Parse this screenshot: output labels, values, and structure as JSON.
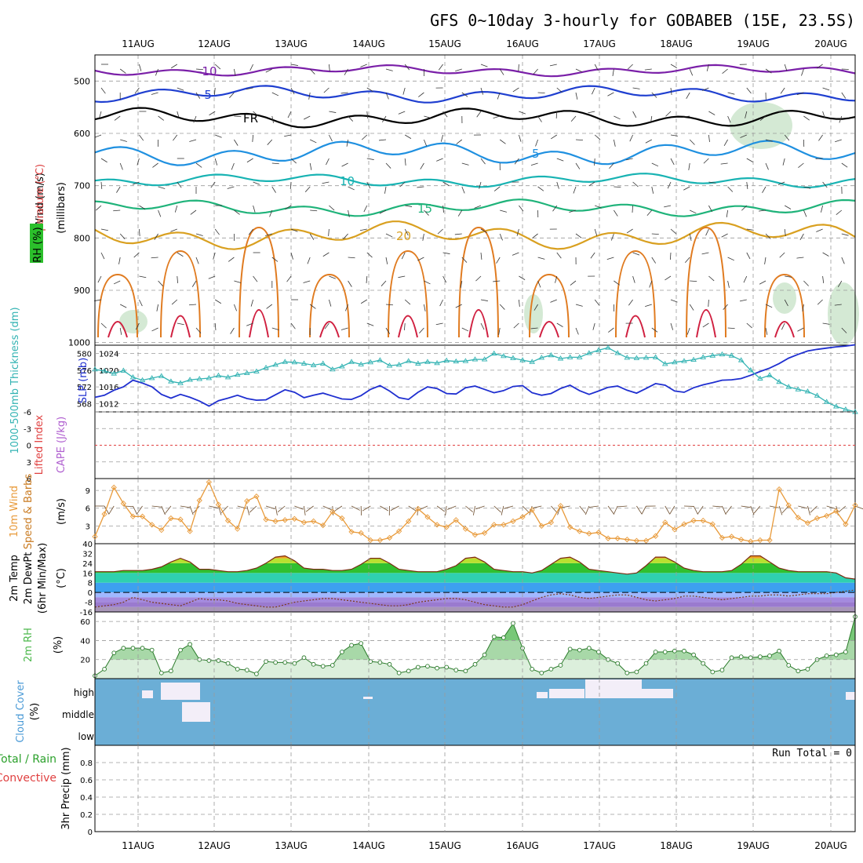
{
  "title": "GFS 0~10day 3-hourly for GOBABEB (15E, 23.5S)",
  "dates": [
    "11AUG",
    "12AUG",
    "13AUG",
    "14AUG",
    "15AUG",
    "16AUG",
    "17AUG",
    "18AUG",
    "19AUG",
    "20AUG"
  ],
  "colors": {
    "thickness": "#33b3b3",
    "slp": "#1f2fd0",
    "wind10": "#e89a3a",
    "rh2m_fill": "#4cb84c",
    "cloud": "#6baed6",
    "cloud_clear": "#f3eef8",
    "grid": "#9a9a9a"
  },
  "panels": {
    "upper": {
      "ylabels": [
        "Wind (m/s)",
        "Temperature (°C)",
        "RH (%)",
        "(millibars)"
      ],
      "yticks": [
        "500",
        "600",
        "700",
        "800",
        "900",
        "1000"
      ]
    },
    "thickness": {
      "ylabel_left": "1000-500mb Thickness (dm)",
      "ylabel_right": "SLP (mb)",
      "ticks_left": [
        "580",
        "576",
        "572",
        "568"
      ],
      "ticks_right": [
        "1024",
        "1020",
        "1016",
        "1012"
      ]
    },
    "lifted": {
      "ylabel_left": "Lifted Index",
      "ylabel_right": "CAPE (J/kg)",
      "ticks": [
        "-6",
        "-3",
        "0",
        "3",
        "6"
      ]
    },
    "wind10m": {
      "ylabel_left": "10m Wind",
      "ylabel_mid": "Speed & Barbs",
      "ylabel_right": "(m/s)",
      "ticks": [
        "9",
        "6",
        "3"
      ]
    },
    "temp2m": {
      "ylabel_a": "2m Temp",
      "ylabel_b": "2m DewPt",
      "ylabel_c": "(6hr Min/Max)",
      "ylabel_d": "(°C)",
      "ticks": [
        "40",
        "32",
        "24",
        "16",
        "8",
        "0",
        "-8",
        "-16"
      ]
    },
    "rh2m": {
      "ylabel_left": "2m RH",
      "ylabel_right": "(%)",
      "ticks": [
        "60",
        "40",
        "20"
      ]
    },
    "cloud": {
      "ylabel_left": "Cloud Cover",
      "ylabel_right": "(%)",
      "levels": [
        "high",
        "middle",
        "low"
      ]
    },
    "precip": {
      "ylabel_a": "Total / Rain",
      "ylabel_b": "Convective",
      "ylabel_c": "3hr Precip (mm)",
      "ticks": [
        "0.8",
        "0.6",
        "0.4",
        "0.2",
        "0"
      ],
      "run_total": "Run Total = 0"
    }
  },
  "chart_data": [
    {
      "type": "line",
      "title": "1000-500mb Thickness and SLP",
      "series": [
        {
          "name": "Thickness (dm)",
          "values": [
            576.2,
            575.8,
            575.2,
            575.9,
            574.3,
            573.6,
            574.1,
            574.6,
            573.3,
            572.9,
            573.7,
            573.9,
            574.1,
            574.7,
            574.3,
            574.9,
            575.3,
            575.7,
            576.6,
            577.3,
            578.0,
            577.9,
            577.6,
            577.2,
            577.6,
            576.2,
            576.9,
            578.0,
            577.4,
            577.9,
            578.4,
            577.1,
            577.3,
            578.2,
            577.6,
            578.0,
            577.7,
            578.3,
            578.1,
            578.2,
            578.6,
            578.6,
            580.0,
            579.4,
            578.9,
            578.4,
            578.0,
            579.0,
            579.6,
            578.8,
            579.1,
            579.1,
            580.1,
            580.8,
            581.4,
            580.1,
            579.0,
            578.9,
            579.0,
            579.1,
            577.5,
            577.9,
            578.2,
            578.5,
            579.1,
            579.5,
            579.8,
            579.5,
            578.4,
            576.0,
            574.0,
            574.8,
            573.2,
            572.0,
            571.4,
            570.9,
            569.9,
            568.4,
            567.3,
            566.6,
            566.0
          ]
        },
        {
          "name": "SLP (mb)",
          "values": [
            1013.5,
            1014.0,
            1015.2,
            1016.0,
            1017.6,
            1016.9,
            1016.0,
            1014.2,
            1013.3,
            1014.2,
            1013.5,
            1012.6,
            1011.4,
            1012.7,
            1013.3,
            1014.0,
            1013.2,
            1012.8,
            1012.9,
            1014.1,
            1015.3,
            1014.7,
            1013.4,
            1014.0,
            1014.5,
            1013.8,
            1013.1,
            1013.0,
            1013.9,
            1015.4,
            1016.3,
            1015.0,
            1013.4,
            1013.0,
            1014.7,
            1016.0,
            1015.6,
            1014.4,
            1014.3,
            1015.8,
            1016.2,
            1015.4,
            1014.6,
            1015.1,
            1016.1,
            1016.3,
            1014.6,
            1014.0,
            1014.4,
            1015.6,
            1016.4,
            1015.1,
            1014.2,
            1015.0,
            1015.9,
            1016.2,
            1015.2,
            1014.5,
            1015.6,
            1016.8,
            1016.4,
            1015.0,
            1014.7,
            1015.8,
            1016.5,
            1017.0,
            1017.6,
            1017.7,
            1018.0,
            1018.8,
            1019.7,
            1020.5,
            1021.6,
            1022.9,
            1023.8,
            1024.6,
            1025.0,
            1025.3,
            1025.6,
            1025.8,
            1026.1
          ]
        }
      ],
      "ylim_left": [
        566,
        582
      ],
      "ylim_right": [
        1010,
        1026
      ]
    },
    {
      "type": "line",
      "title": "10m Wind Speed (m/s)",
      "values": [
        1.2,
        5.0,
        9.5,
        6.8,
        4.6,
        4.6,
        3.2,
        2.3,
        4.3,
        4.1,
        2.1,
        7.3,
        10.4,
        6.6,
        3.9,
        2.5,
        7.2,
        8.0,
        4.1,
        3.8,
        4.0,
        4.2,
        3.6,
        3.8,
        3.1,
        5.4,
        4.3,
        2.0,
        1.8,
        0.6,
        0.6,
        1.0,
        2.1,
        3.8,
        5.9,
        4.5,
        3.2,
        2.8,
        4.0,
        2.5,
        1.5,
        1.8,
        3.2,
        3.2,
        3.8,
        4.5,
        5.7,
        3.0,
        3.6,
        6.4,
        2.8,
        2.1,
        1.7,
        1.9,
        0.9,
        0.9,
        0.7,
        0.5,
        0.5,
        1.3,
        3.6,
        2.4,
        3.3,
        3.9,
        3.9,
        3.3,
        1.0,
        1.2,
        0.7,
        0.4,
        0.6,
        0.6,
        9.2,
        6.5,
        4.4,
        3.5,
        4.3,
        4.7,
        5.5,
        3.3,
        6.5
      ],
      "ylim": [
        0,
        11
      ]
    },
    {
      "type": "area",
      "title": "2m Temp / 2m DewPt (°C)",
      "series": [
        {
          "name": "2m Temp",
          "values": [
            17,
            17,
            17,
            18,
            18,
            18,
            19,
            21,
            25,
            28,
            25,
            19,
            19,
            18,
            17,
            17,
            18,
            20,
            24,
            29,
            30,
            26,
            20,
            19,
            19,
            18,
            18,
            19,
            23,
            28,
            28,
            24,
            19,
            18,
            17,
            17,
            17,
            19,
            22,
            28,
            29,
            25,
            19,
            18,
            17,
            17,
            16,
            18,
            23,
            28,
            29,
            25,
            19,
            18,
            17,
            16,
            15,
            16,
            22,
            29,
            29,
            25,
            20,
            18,
            17,
            17,
            17,
            18,
            23,
            30,
            30,
            25,
            20,
            18,
            17,
            17,
            17,
            17,
            16,
            12,
            11
          ]
        },
        {
          "name": "2m DewPt",
          "values": [
            -12,
            -11,
            -10,
            -8,
            -4,
            -6,
            -8,
            -9,
            -10,
            -11,
            -8,
            -5,
            -6,
            -6,
            -7,
            -9,
            -10,
            -11,
            -12,
            -12,
            -10,
            -8,
            -7,
            -6,
            -5,
            -5,
            -6,
            -7,
            -8,
            -9,
            -10,
            -11,
            -11,
            -10,
            -8,
            -7,
            -6,
            -5,
            -5,
            -6,
            -8,
            -10,
            -11,
            -12,
            -12,
            -10,
            -7,
            -4,
            -2,
            -1,
            -2,
            -4,
            -5,
            -4,
            -3,
            -2,
            -2,
            -4,
            -6,
            -7,
            -6,
            -5,
            -3,
            -3,
            -4,
            -5,
            -6,
            -5,
            -4,
            -3,
            -3,
            -2,
            -2,
            -3,
            -2,
            -1,
            -1,
            -1,
            0,
            1,
            2
          ]
        }
      ],
      "ylim": [
        -16,
        40
      ]
    },
    {
      "type": "area",
      "title": "2m RH (%)",
      "values": [
        3,
        10,
        27,
        32,
        32,
        32,
        30,
        6,
        8,
        30,
        36,
        20,
        19,
        19,
        16,
        10,
        9,
        5,
        18,
        17,
        17,
        16,
        22,
        15,
        13,
        14,
        28,
        35,
        37,
        18,
        17,
        15,
        6,
        8,
        12,
        13,
        11,
        12,
        9,
        8,
        15,
        25,
        44,
        43,
        58,
        32,
        10,
        6,
        10,
        14,
        31,
        30,
        32,
        28,
        20,
        16,
        6,
        7,
        16,
        28,
        28,
        29,
        29,
        25,
        16,
        7,
        9,
        22,
        23,
        22,
        23,
        24,
        29,
        14,
        8,
        10,
        20,
        24,
        25,
        28,
        65
      ],
      "ylim": [
        0,
        70
      ]
    },
    {
      "type": "line",
      "title": "3hr Precip (mm)",
      "values": [
        0,
        0,
        0,
        0,
        0,
        0,
        0,
        0,
        0,
        0
      ],
      "ylim": [
        0,
        1
      ]
    }
  ]
}
